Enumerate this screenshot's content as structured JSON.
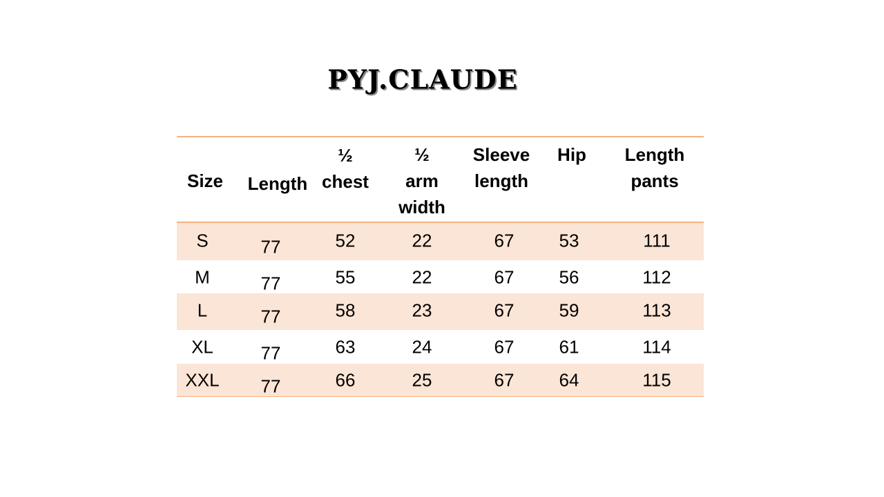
{
  "title": "PYJ.CLAUDE",
  "colors": {
    "rule": "#f4b183",
    "band": "#fbe5d6"
  },
  "table": {
    "headers": [
      [
        "Size"
      ],
      [
        "Length"
      ],
      [
        "½",
        "chest"
      ],
      [
        "½",
        "arm",
        "width"
      ],
      [
        "Sleeve",
        "length"
      ],
      [
        "Hip"
      ],
      [
        "Length",
        "pants"
      ]
    ],
    "rows": [
      [
        "S",
        "77",
        "52",
        "22",
        "67",
        "53",
        "111"
      ],
      [
        "M",
        "77",
        "55",
        "22",
        "67",
        "56",
        "112"
      ],
      [
        "L",
        "77",
        "58",
        "23",
        "67",
        "59",
        "113"
      ],
      [
        "XL",
        "77",
        "63",
        "24",
        "67",
        "61",
        "114"
      ],
      [
        "XXL",
        "77",
        "66",
        "25",
        "67",
        "64",
        "115"
      ]
    ]
  }
}
